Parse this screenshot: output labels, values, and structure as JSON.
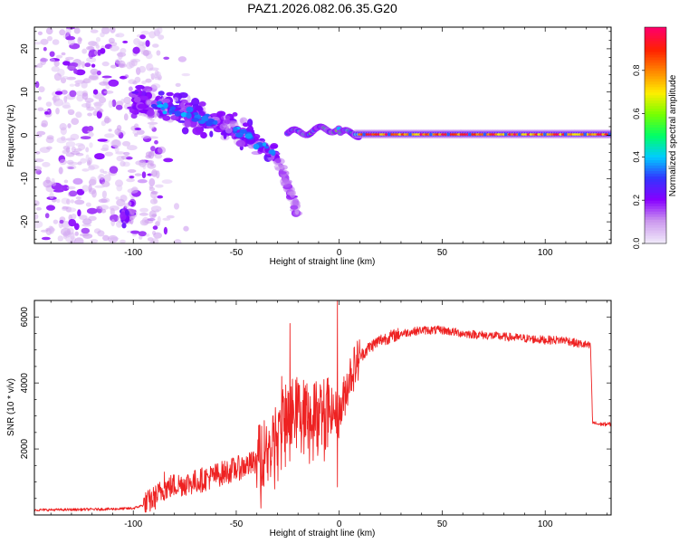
{
  "chart_data": [
    {
      "type": "heatmap",
      "title": "PAZ1.2026.082.06.35.G20",
      "xlabel": "Height of straight line (km)",
      "ylabel": "Frequency (Hz)",
      "xlim": [
        -148,
        132
      ],
      "ylim": [
        -25,
        25
      ],
      "xticks": [
        -100,
        -50,
        0,
        50,
        100
      ],
      "yticks": [
        -20,
        -10,
        0,
        10,
        20
      ],
      "colorbar": {
        "label": "Normalized spectral amplitude",
        "range": [
          0,
          1
        ],
        "ticks": [
          0.0,
          0.2,
          0.4,
          0.6,
          0.8
        ],
        "colors": [
          "#f0e8fa",
          "#cc99ee",
          "#8800ff",
          "#3333ff",
          "#00ccff",
          "#00ff66",
          "#77ff00",
          "#ffee00",
          "#ff8800",
          "#ff2200",
          "#ff0066"
        ]
      },
      "features": [
        {
          "name": "noise scatter",
          "x_range": [
            -148,
            -90
          ],
          "freq_range": [
            -25,
            25
          ],
          "amplitude": 0.08
        },
        {
          "name": "descending track",
          "points": [
            [
              -100,
              8
            ],
            [
              -80,
              6
            ],
            [
              -60,
              3
            ],
            [
              -45,
              0
            ],
            [
              -30,
              -5
            ],
            [
              -20,
              -18
            ]
          ],
          "amplitude": 0.2
        },
        {
          "name": "main carrier",
          "x_range": [
            -25,
            132
          ],
          "freq": 0,
          "amplitude": 0.9
        }
      ]
    },
    {
      "type": "line",
      "xlabel": "Height of straight line (km)",
      "ylabel": "SNR (10 * v/v)",
      "xlim": [
        -148,
        132
      ],
      "ylim": [
        0,
        6500
      ],
      "xticks": [
        -100,
        -50,
        0,
        50,
        100
      ],
      "yticks": [
        2000,
        4000,
        6000
      ],
      "color": "#ee2222",
      "series": [
        {
          "name": "SNR",
          "x": [
            -148,
            -130,
            -110,
            -100,
            -95,
            -90,
            -85,
            -80,
            -75,
            -70,
            -65,
            -60,
            -55,
            -50,
            -45,
            -40,
            -35,
            -30,
            -25,
            -20,
            -15,
            -10,
            -5,
            0,
            5,
            10,
            15,
            20,
            25,
            30,
            35,
            40,
            50,
            60,
            70,
            80,
            90,
            100,
            110,
            115,
            120,
            122,
            123,
            126,
            132
          ],
          "values": [
            150,
            160,
            180,
            200,
            300,
            500,
            800,
            900,
            950,
            1000,
            1100,
            1200,
            1300,
            1400,
            1500,
            1600,
            2000,
            2500,
            3000,
            3200,
            3000,
            3100,
            3200,
            3000,
            4200,
            4800,
            5100,
            5300,
            5400,
            5500,
            5550,
            5600,
            5600,
            5500,
            5450,
            5400,
            5350,
            5300,
            5300,
            5200,
            5150,
            5100,
            2800,
            2750,
            2750
          ]
        }
      ],
      "spikes": [
        [
          -24,
          5800
        ],
        [
          -1,
          6550
        ],
        [
          -1,
          850
        ],
        [
          -85,
          1300
        ],
        [
          -28,
          4200
        ]
      ]
    }
  ]
}
